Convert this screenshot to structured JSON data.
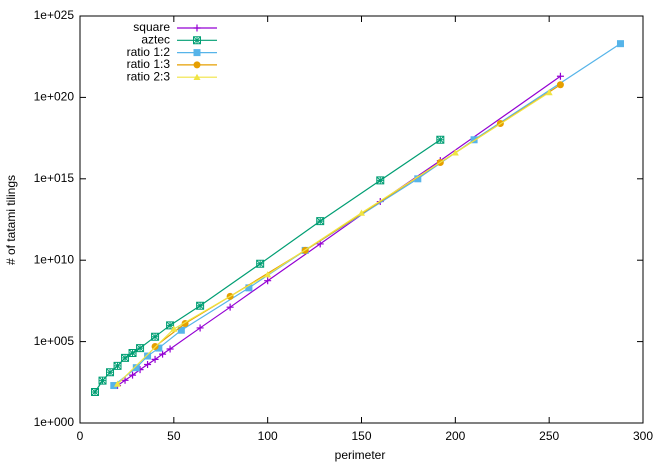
{
  "chart_data": {
    "type": "line",
    "x_label": "perimeter",
    "y_label": "# of tatami tilings",
    "xlim": [
      0,
      300
    ],
    "xticks": [
      0,
      50,
      100,
      150,
      200,
      250,
      300
    ],
    "ylim": [
      1,
      1e+25
    ],
    "log_y": true,
    "yticks": [
      {
        "value": 1,
        "label": "1e+000"
      },
      {
        "value": 100000.0,
        "label": "1e+005"
      },
      {
        "value": 10000000000.0,
        "label": "1e+010"
      },
      {
        "value": 1000000000000000.0,
        "label": "1e+015"
      },
      {
        "value": 1e+20,
        "label": "1e+020"
      },
      {
        "value": 1e+25,
        "label": "1e+025"
      }
    ],
    "legend": "top-left",
    "series": [
      {
        "name": "square",
        "color": "#9400d3",
        "marker": "plus",
        "x": [
          20,
          24,
          28,
          32,
          36,
          40,
          44,
          48,
          64,
          80,
          100,
          128,
          160,
          192,
          256
        ],
        "values": [
          200,
          420,
          870,
          1900,
          3900,
          8100,
          17000,
          35000,
          690000,
          13000000,
          550000000,
          100000000000.0,
          40000000000000.0,
          1.3e+16,
          2e+21
        ]
      },
      {
        "name": "aztec",
        "color": "#009e73",
        "marker": "asterisk-box",
        "x": [
          8,
          12,
          16,
          20,
          24,
          28,
          32,
          40,
          48,
          64,
          96,
          128,
          160,
          192
        ],
        "values": [
          80,
          400,
          1300,
          3200,
          10000,
          20000,
          40000,
          200000,
          1000000,
          16000000,
          6000000000.0,
          2500000000000.0,
          800000000000000.0,
          2.5e+17
        ]
      },
      {
        "name": "ratio 1:2",
        "color": "#56b4e9",
        "marker": "square",
        "x": [
          18,
          30,
          36,
          42,
          54,
          90,
          120,
          180,
          210,
          288
        ],
        "values": [
          200,
          2500,
          13000,
          40000,
          500000,
          200000000,
          40000000000.0,
          1000000000000000.0,
          2.5e+17,
          2e+23
        ]
      },
      {
        "name": "ratio 1:3",
        "color": "#e69f00",
        "marker": "circle",
        "x": [
          40,
          56,
          80,
          120,
          192,
          224,
          256
        ],
        "values": [
          50000,
          1300000,
          60000000,
          40000000000.0,
          1e+16,
          2.5e+18,
          6e+20
        ]
      },
      {
        "name": "ratio 2:3",
        "color": "#f0e442",
        "marker": "triangle",
        "x": [
          20,
          50,
          100,
          150,
          200,
          250
        ],
        "values": [
          250,
          600000,
          1300000000.0,
          8000000000000.0,
          4e+16,
          2e+20
        ]
      }
    ]
  }
}
